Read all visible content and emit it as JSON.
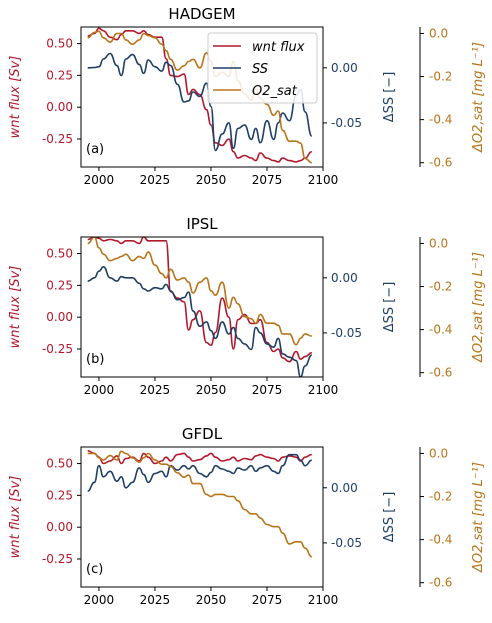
{
  "colors": {
    "wnt": "#b2182b",
    "ss": "#1f3f66",
    "o2": "#b8741a",
    "axis": "#000000"
  },
  "legend": {
    "placement": "upper-right of top panel",
    "items": [
      "wnt flux",
      "SS",
      "O2_sat"
    ]
  },
  "chart_data": [
    {
      "type": "line",
      "title": "HADGEM",
      "panel_label": "(a)",
      "xlabel": "",
      "ylabel_left": "wnt flux [Sv]",
      "ylabel_right1": "ΔSS [−]",
      "ylabel_right2": "ΔO2,sat [mg L⁻¹]",
      "xlim": [
        1992,
        2100
      ],
      "ylim_left": [
        -0.47,
        0.63
      ],
      "ylim_right1": [
        -0.09,
        0.037
      ],
      "ylim_right2": [
        -0.62,
        0.03
      ],
      "xticks": [
        2000,
        2025,
        2050,
        2075,
        2100
      ],
      "yticks_left": [
        0.5,
        0.25,
        0.0,
        -0.25
      ],
      "yticks_right1": [
        0.0,
        -0.05
      ],
      "yticks_right2": [
        0.0,
        -0.2,
        -0.4,
        -0.6
      ],
      "x": [
        1995,
        1998,
        2000,
        2002,
        2005,
        2008,
        2010,
        2012,
        2015,
        2018,
        2020,
        2022,
        2025,
        2028,
        2030,
        2032,
        2035,
        2038,
        2040,
        2042,
        2045,
        2048,
        2050,
        2052,
        2055,
        2058,
        2060,
        2062,
        2065,
        2068,
        2070,
        2072,
        2075,
        2078,
        2080,
        2082,
        2085,
        2088,
        2090,
        2092,
        2095
      ],
      "series": [
        {
          "name": "wnt flux",
          "axis": "left",
          "color_key": "wnt",
          "values": [
            0.56,
            0.58,
            0.62,
            0.6,
            0.55,
            0.53,
            0.57,
            0.6,
            0.6,
            0.58,
            0.6,
            0.57,
            0.55,
            0.55,
            0.38,
            0.25,
            0.24,
            0.26,
            0.1,
            0.14,
            0.1,
            -0.02,
            -0.14,
            -0.28,
            -0.3,
            -0.25,
            -0.35,
            -0.4,
            -0.38,
            -0.4,
            -0.42,
            -0.36,
            -0.4,
            -0.42,
            -0.43,
            -0.4,
            -0.42,
            -0.43,
            -0.42,
            -0.4,
            -0.35
          ]
        },
        {
          "name": "SS",
          "axis": "right1",
          "color_key": "ss",
          "values": [
            0,
            0.0003,
            0.001,
            0.008,
            0.013,
            0.002,
            -0.007,
            0.008,
            0.012,
            0.003,
            -0.005,
            0.007,
            0.001,
            -0.003,
            0.005,
            0.002,
            -0.015,
            -0.031,
            -0.03,
            -0.022,
            -0.026,
            -0.014,
            -0.035,
            -0.075,
            -0.06,
            -0.05,
            -0.073,
            -0.055,
            -0.052,
            -0.065,
            -0.055,
            -0.068,
            -0.048,
            -0.065,
            -0.05,
            -0.041,
            -0.048,
            -0.025,
            -0.02,
            -0.04,
            -0.062
          ]
        },
        {
          "name": "O2_sat",
          "axis": "right2",
          "color_key": "o2",
          "values": [
            -0.02,
            0.005,
            0.01,
            -0.02,
            -0.04,
            0,
            0.0,
            -0.03,
            -0.05,
            -0.03,
            0.0,
            -0.01,
            -0.02,
            -0.05,
            -0.08,
            -0.12,
            -0.17,
            -0.15,
            -0.13,
            -0.12,
            -0.16,
            -0.09,
            -0.13,
            -0.2,
            -0.18,
            -0.2,
            -0.13,
            -0.22,
            -0.28,
            -0.31,
            -0.26,
            -0.3,
            -0.33,
            -0.38,
            -0.36,
            -0.45,
            -0.5,
            -0.5,
            -0.51,
            -0.58,
            -0.6
          ]
        }
      ]
    },
    {
      "type": "line",
      "title": "IPSL",
      "panel_label": "(b)",
      "xlabel": "",
      "ylabel_left": "wnt flux [Sv]",
      "ylabel_right1": "ΔSS [−]",
      "ylabel_right2": "ΔO2,sat [mg L⁻¹]",
      "xlim": [
        1992,
        2100
      ],
      "ylim_left": [
        -0.47,
        0.63
      ],
      "ylim_right1": [
        -0.09,
        0.037
      ],
      "ylim_right2": [
        -0.62,
        0.03
      ],
      "xticks": [
        2000,
        2025,
        2050,
        2075,
        2100
      ],
      "yticks_left": [
        0.5,
        0.25,
        0.0,
        -0.25
      ],
      "yticks_right1": [
        0.0,
        -0.05
      ],
      "yticks_right2": [
        0.0,
        -0.2,
        -0.4,
        -0.6
      ],
      "x": [
        1995,
        1998,
        2000,
        2002,
        2005,
        2008,
        2010,
        2012,
        2015,
        2018,
        2020,
        2022,
        2025,
        2028,
        2030,
        2032,
        2035,
        2038,
        2040,
        2042,
        2045,
        2048,
        2050,
        2052,
        2055,
        2058,
        2060,
        2062,
        2065,
        2068,
        2070,
        2072,
        2075,
        2078,
        2080,
        2082,
        2085,
        2088,
        2090,
        2092,
        2095
      ],
      "series": [
        {
          "name": "wnt flux",
          "axis": "left",
          "color_key": "wnt",
          "values": [
            0.61,
            0.63,
            0.62,
            0.6,
            0.61,
            0.6,
            0.58,
            0.6,
            0.6,
            0.58,
            0.63,
            0.6,
            0.6,
            0.6,
            0.6,
            0.2,
            0.15,
            0.12,
            -0.1,
            -0.02,
            0.05,
            -0.2,
            -0.22,
            -0.12,
            0.15,
            0.0,
            -0.25,
            -0.02,
            0.02,
            -0.05,
            -0.05,
            -0.02,
            -0.2,
            -0.27,
            -0.25,
            -0.32,
            -0.35,
            -0.27,
            -0.33,
            -0.31,
            -0.28
          ]
        },
        {
          "name": "SS",
          "axis": "right1",
          "color_key": "ss",
          "values": [
            -0.003,
            0.0,
            0.006,
            0.01,
            0.0,
            -0.003,
            0.001,
            0.0,
            0.0,
            -0.005,
            -0.01,
            -0.012,
            -0.009,
            -0.01,
            -0.006,
            -0.012,
            -0.02,
            -0.018,
            -0.013,
            -0.03,
            -0.044,
            -0.04,
            -0.048,
            -0.055,
            -0.04,
            -0.051,
            -0.045,
            -0.055,
            -0.06,
            -0.065,
            -0.045,
            -0.05,
            -0.06,
            -0.063,
            -0.055,
            -0.069,
            -0.072,
            -0.075,
            -0.09,
            -0.08,
            -0.07
          ]
        },
        {
          "name": "O2_sat",
          "axis": "right2",
          "color_key": "o2",
          "values": [
            0.0,
            0.03,
            -0.02,
            -0.05,
            -0.08,
            -0.07,
            -0.06,
            -0.05,
            -0.08,
            -0.06,
            -0.07,
            -0.04,
            -0.1,
            -0.14,
            -0.16,
            -0.12,
            -0.17,
            -0.16,
            -0.18,
            -0.23,
            -0.18,
            -0.16,
            -0.22,
            -0.24,
            -0.18,
            -0.3,
            -0.25,
            -0.28,
            -0.34,
            -0.35,
            -0.37,
            -0.33,
            -0.37,
            -0.37,
            -0.38,
            -0.42,
            -0.42,
            -0.47,
            -0.44,
            -0.42,
            -0.43
          ]
        }
      ]
    },
    {
      "type": "line",
      "title": "GFDL",
      "panel_label": "(c)",
      "xlabel": "",
      "ylabel_left": "wnt flux [Sv]",
      "ylabel_right1": "ΔSS [−]",
      "ylabel_right2": "ΔO2,sat [mg L⁻¹]",
      "xlim": [
        1992,
        2100
      ],
      "ylim_left": [
        -0.47,
        0.63
      ],
      "ylim_right1": [
        -0.09,
        0.037
      ],
      "ylim_right2": [
        -0.62,
        0.03
      ],
      "xticks": [
        2000,
        2025,
        2050,
        2075,
        2100
      ],
      "yticks_left": [
        0.5,
        0.25,
        0.0,
        -0.25
      ],
      "yticks_right1": [
        0.0,
        -0.05
      ],
      "yticks_right2": [
        0.0,
        -0.2,
        -0.4,
        -0.6
      ],
      "x": [
        1995,
        1998,
        2000,
        2002,
        2005,
        2008,
        2010,
        2012,
        2015,
        2018,
        2020,
        2022,
        2025,
        2028,
        2030,
        2032,
        2035,
        2038,
        2040,
        2042,
        2045,
        2048,
        2050,
        2052,
        2055,
        2058,
        2060,
        2062,
        2065,
        2068,
        2070,
        2072,
        2075,
        2078,
        2080,
        2082,
        2085,
        2088,
        2090,
        2092,
        2095
      ],
      "series": [
        {
          "name": "wnt flux",
          "axis": "left",
          "color_key": "wnt",
          "values": [
            0.6,
            0.58,
            0.55,
            0.5,
            0.52,
            0.56,
            0.5,
            0.54,
            0.55,
            0.52,
            0.58,
            0.55,
            0.5,
            0.52,
            0.55,
            0.52,
            0.57,
            0.58,
            0.55,
            0.52,
            0.53,
            0.56,
            0.58,
            0.55,
            0.52,
            0.53,
            0.55,
            0.52,
            0.54,
            0.53,
            0.56,
            0.57,
            0.55,
            0.54,
            0.52,
            0.55,
            0.56,
            0.55,
            0.52,
            0.55,
            0.57
          ]
        },
        {
          "name": "SS",
          "axis": "right1",
          "color_key": "ss",
          "values": [
            -0.003,
            0.005,
            0.02,
            0.01,
            0.015,
            0.006,
            0.01,
            0.0,
            0.005,
            0.018,
            0.012,
            0.005,
            0.013,
            0.015,
            0.01,
            0.02,
            0.016,
            0.02,
            0.017,
            0.02,
            0.013,
            0.01,
            0.014,
            0.02,
            0.017,
            0.015,
            0.013,
            0.018,
            0.016,
            0.02,
            0.015,
            0.018,
            0.02,
            0.015,
            0.013,
            0.02,
            0.03,
            0.03,
            0.025,
            0.02,
            0.025
          ]
        },
        {
          "name": "O2_sat",
          "axis": "right2",
          "color_key": "o2",
          "values": [
            0.0,
            0.0,
            -0.02,
            -0.03,
            -0.01,
            -0.03,
            0.01,
            0.0,
            -0.02,
            -0.04,
            -0.02,
            0.0,
            -0.03,
            -0.05,
            -0.05,
            -0.06,
            -0.09,
            -0.11,
            -0.1,
            -0.14,
            -0.14,
            -0.19,
            -0.2,
            -0.19,
            -0.19,
            -0.2,
            -0.2,
            -0.22,
            -0.26,
            -0.28,
            -0.28,
            -0.3,
            -0.33,
            -0.34,
            -0.34,
            -0.37,
            -0.42,
            -0.41,
            -0.41,
            -0.44,
            -0.48
          ]
        }
      ]
    }
  ]
}
